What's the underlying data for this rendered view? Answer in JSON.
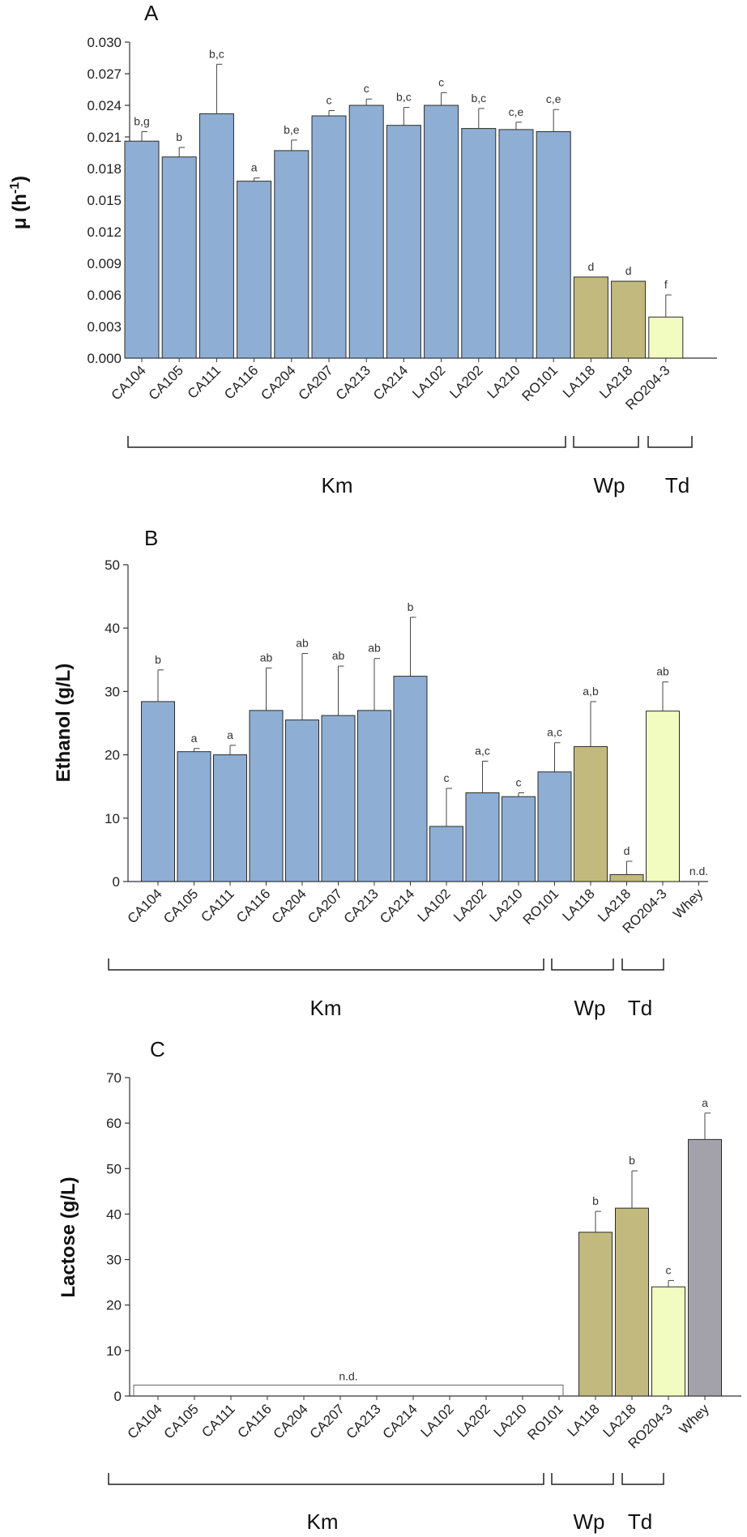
{
  "colors": {
    "Km": "#8eaed4",
    "Wp": "#c2b97e",
    "Td": "#f2fcc0",
    "Whey": "#a3a2aa",
    "axis": "#333333",
    "bar_edge": "#2b2b2b"
  },
  "chart_data": [
    {
      "panel": "A",
      "type": "bar",
      "ylabel": "μ (h",
      "ylabel_sup": "-1",
      "ylabel_close": ")",
      "ylim": [
        0,
        0.03
      ],
      "yticks": [
        "0.000",
        "0.003",
        "0.006",
        "0.009",
        "0.012",
        "0.015",
        "0.018",
        "0.021",
        "0.024",
        "0.027",
        "0.030"
      ],
      "categories": [
        "CA104",
        "CA105",
        "CA111",
        "CA116",
        "CA204",
        "CA207",
        "CA213",
        "CA214",
        "LA102",
        "LA202",
        "LA210",
        "RO101",
        "LA118",
        "LA218",
        "RO204-3"
      ],
      "groups": [
        "Km",
        "Km",
        "Km",
        "Km",
        "Km",
        "Km",
        "Km",
        "Km",
        "Km",
        "Km",
        "Km",
        "Km",
        "Wp",
        "Wp",
        "Td"
      ],
      "values": [
        0.0206,
        0.0191,
        0.0232,
        0.0168,
        0.0197,
        0.023,
        0.024,
        0.0221,
        0.024,
        0.0218,
        0.0217,
        0.0215,
        0.0077,
        0.0073,
        0.0039
      ],
      "errors": [
        0.0009,
        0.0009,
        0.0047,
        0.0003,
        0.001,
        0.0005,
        0.0006,
        0.0017,
        0.0012,
        0.0019,
        0.0007,
        0.0021,
        0,
        0,
        0.0021
      ],
      "letters": [
        "b,g",
        "b",
        "b,c",
        "a",
        "b,e",
        "c",
        "c",
        "b,c",
        "c",
        "b,c",
        "c,e",
        "c,e",
        "d",
        "d",
        "f"
      ],
      "brackets": [
        {
          "label": "Km",
          "from": 0,
          "to": 11
        },
        {
          "label": "Wp",
          "from": 12,
          "to": 13
        },
        {
          "label": "Td",
          "from": 14,
          "to": 14
        }
      ]
    },
    {
      "panel": "B",
      "type": "bar",
      "ylabel": "Ethanol (g/L)",
      "ylim": [
        0,
        50
      ],
      "yticks": [
        "0",
        "10",
        "20",
        "30",
        "40",
        "50"
      ],
      "categories": [
        "CA104",
        "CA105",
        "CA111",
        "CA116",
        "CA204",
        "CA207",
        "CA213",
        "CA214",
        "LA102",
        "LA202",
        "LA210",
        "RO101",
        "LA118",
        "LA218",
        "RO204-3",
        "Whey"
      ],
      "groups": [
        "Km",
        "Km",
        "Km",
        "Km",
        "Km",
        "Km",
        "Km",
        "Km",
        "Km",
        "Km",
        "Km",
        "Km",
        "Wp",
        "Wp",
        "Td",
        "Whey"
      ],
      "values": [
        28.4,
        20.5,
        20.0,
        27.0,
        25.5,
        26.2,
        27.0,
        32.4,
        8.7,
        14.0,
        13.4,
        17.3,
        21.3,
        1.1,
        26.9,
        0
      ],
      "errors": [
        5.0,
        0.5,
        1.5,
        6.7,
        10.5,
        7.8,
        8.2,
        9.3,
        6.0,
        5.0,
        0.6,
        4.6,
        7.1,
        2.1,
        4.6,
        0
      ],
      "letters": [
        "b",
        "a",
        "a",
        "ab",
        "ab",
        "ab",
        "ab",
        "b",
        "c",
        "a,c",
        "c",
        "a,c",
        "a,b",
        "d",
        "ab",
        "n.d."
      ],
      "brackets": [
        {
          "label": "Km",
          "from": 0,
          "to": 11
        },
        {
          "label": "Wp",
          "from": 12,
          "to": 13
        },
        {
          "label": "Td",
          "from": 14,
          "to": 14
        }
      ]
    },
    {
      "panel": "C",
      "type": "bar",
      "ylabel": "Lactose (g/L)",
      "ylim": [
        0,
        70
      ],
      "yticks": [
        "0",
        "10",
        "20",
        "30",
        "40",
        "50",
        "60",
        "70"
      ],
      "categories": [
        "CA104",
        "CA105",
        "CA111",
        "CA116",
        "CA204",
        "CA207",
        "CA213",
        "CA214",
        "LA102",
        "LA202",
        "LA210",
        "RO101",
        "LA118",
        "LA218",
        "RO204-3",
        "Whey"
      ],
      "groups": [
        "Km",
        "Km",
        "Km",
        "Km",
        "Km",
        "Km",
        "Km",
        "Km",
        "Km",
        "Km",
        "Km",
        "Km",
        "Wp",
        "Wp",
        "Td",
        "Whey"
      ],
      "values": [
        0,
        0,
        0,
        0,
        0,
        0,
        0,
        0,
        0,
        0,
        0,
        0,
        36.0,
        41.3,
        24.0,
        56.4
      ],
      "errors": [
        0,
        0,
        0,
        0,
        0,
        0,
        0,
        0,
        0,
        0,
        0,
        0,
        4.6,
        8.2,
        1.4,
        5.8
      ],
      "letters": [
        "",
        "",
        "",
        "",
        "",
        "",
        "",
        "",
        "",
        "",
        "",
        "",
        "b",
        "b",
        "c",
        "a"
      ],
      "nd_label": "n.d.",
      "nd_from": 0,
      "nd_to": 11,
      "brackets": [
        {
          "label": "Km",
          "from": 0,
          "to": 11
        },
        {
          "label": "Wp",
          "from": 12,
          "to": 13
        },
        {
          "label": "Td",
          "from": 14,
          "to": 14
        }
      ]
    }
  ]
}
